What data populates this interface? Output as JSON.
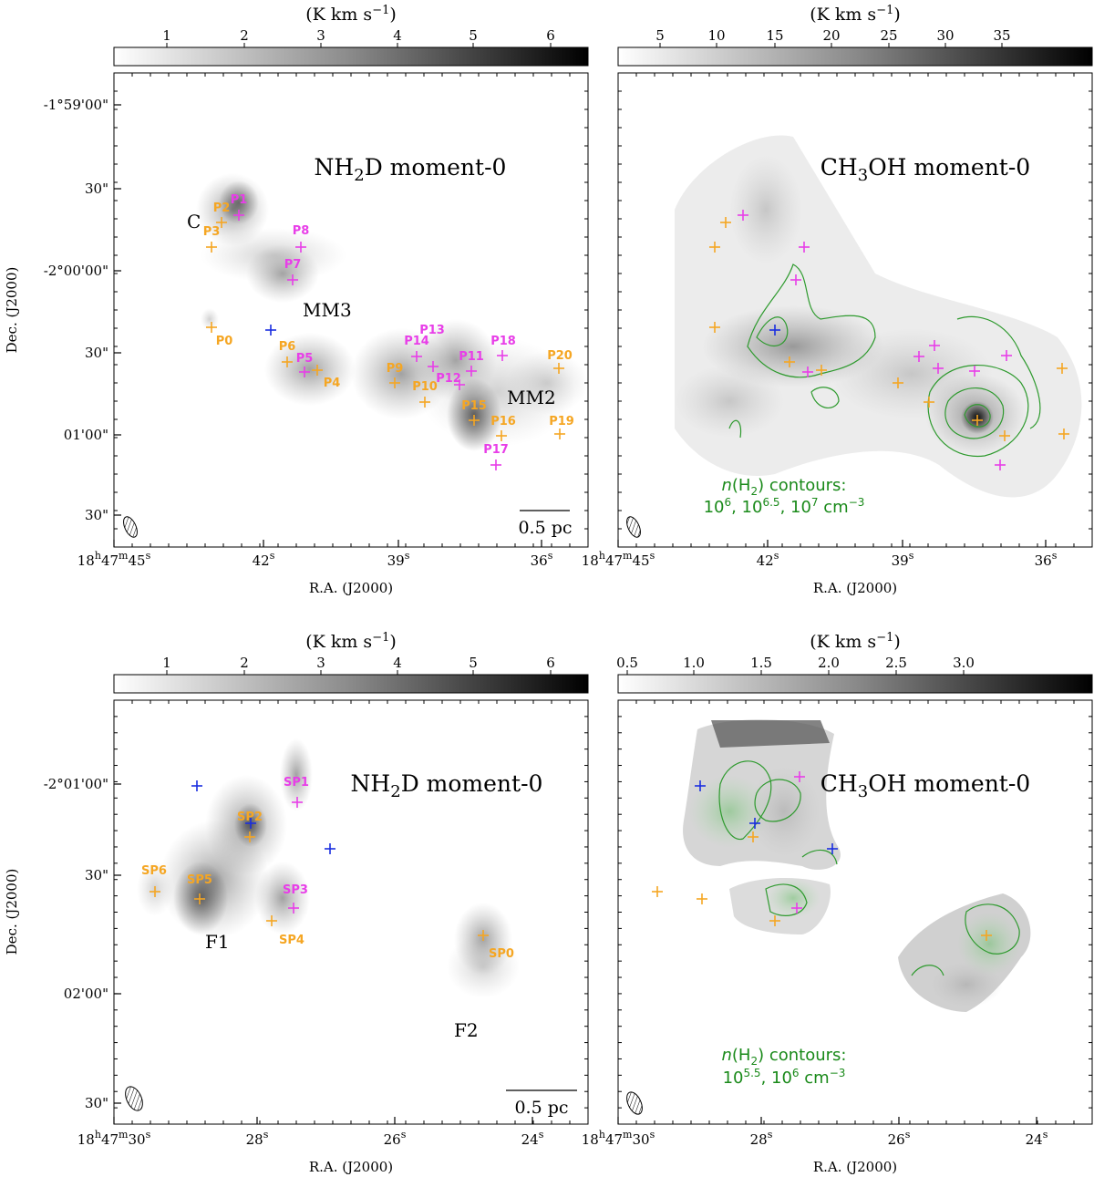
{
  "figure": {
    "axis_title_x": "R.A. (J2000)",
    "axis_title_y": "Dec. (J2000)",
    "cbar_title_prefix": "(K km s",
    "cbar_title_exp": "−1",
    "cbar_title_suffix": ")",
    "scalebar_label": "0.5 pc",
    "colors": {
      "orange_source": "#f5a623",
      "magenta_source": "#e83ee8",
      "blue_source": "#1a2ee0",
      "contour": "#2e9a2e",
      "contour_text": "#1a8a1a"
    }
  },
  "panels": [
    {
      "id": "top-left",
      "title_pre": "NH",
      "title_sub": "2",
      "title_post": "D moment-0",
      "colorbar_ticks": [
        "1",
        "2",
        "3",
        "4",
        "5",
        "6"
      ],
      "ra_ticks": [
        "18h47m45s",
        "42s",
        "39s",
        "36s"
      ],
      "ra_ticks_parts": [
        [
          "18",
          "h",
          "47",
          "m",
          "45",
          "s"
        ],
        [
          "42",
          "s"
        ],
        [
          "39",
          "s"
        ],
        [
          "36",
          "s"
        ]
      ],
      "dec_ticks": [
        "-1°59'00\"",
        "30\"",
        "-2°00'00\"",
        "30\"",
        "01'00\"",
        "30\""
      ],
      "regions": [
        "C",
        "MM3",
        "MM2"
      ],
      "sources_orange": [
        "P2",
        "P3",
        "P0",
        "P6",
        "P4",
        "P9",
        "P10",
        "P15",
        "P16",
        "P19",
        "P20"
      ],
      "sources_magenta": [
        "P1",
        "P8",
        "P7",
        "P5",
        "P14",
        "P13",
        "P11",
        "P12",
        "P18",
        "P17"
      ],
      "scalebar": true
    },
    {
      "id": "top-right",
      "title_pre": "CH",
      "title_sub": "3",
      "title_post": "OH moment-0",
      "colorbar_ticks": [
        "5",
        "10",
        "15",
        "20",
        "25",
        "30",
        "35"
      ],
      "ra_ticks_parts": [
        [
          "18",
          "h",
          "47",
          "m",
          "45",
          "s"
        ],
        [
          "42",
          "s"
        ],
        [
          "39",
          "s"
        ],
        [
          "36",
          "s"
        ]
      ],
      "contour_note_line1": "n(H2) contours:",
      "contour_note_line2": "10^6, 10^6.5, 10^7 cm^-3"
    },
    {
      "id": "bottom-left",
      "title_pre": "NH",
      "title_sub": "2",
      "title_post": "D moment-0",
      "colorbar_ticks": [
        "1",
        "2",
        "3",
        "4",
        "5",
        "6"
      ],
      "ra_ticks_parts": [
        [
          "18",
          "h",
          "47",
          "m",
          "30",
          "s"
        ],
        [
          "28",
          "s"
        ],
        [
          "26",
          "s"
        ],
        [
          "24",
          "s"
        ]
      ],
      "dec_ticks": [
        "-2°01'00\"",
        "30\"",
        "02'00\"",
        "30\""
      ],
      "regions": [
        "F1",
        "F2"
      ],
      "sources_orange": [
        "SP2",
        "SP6",
        "SP5",
        "SP4",
        "SP0"
      ],
      "sources_magenta": [
        "SP1",
        "SP3"
      ],
      "scalebar": true
    },
    {
      "id": "bottom-right",
      "title_pre": "CH",
      "title_sub": "3",
      "title_post": "OH moment-0",
      "colorbar_ticks": [
        "0.5",
        "1.0",
        "1.5",
        "2.0",
        "2.5",
        "3.0"
      ],
      "ra_ticks_parts": [
        [
          "18",
          "h",
          "47",
          "m",
          "30",
          "s"
        ],
        [
          "28",
          "s"
        ],
        [
          "26",
          "s"
        ],
        [
          "24",
          "s"
        ]
      ],
      "contour_note_line1": "n(H2) contours:",
      "contour_note_line2": "10^5.5, 10^6 cm^-3"
    }
  ]
}
